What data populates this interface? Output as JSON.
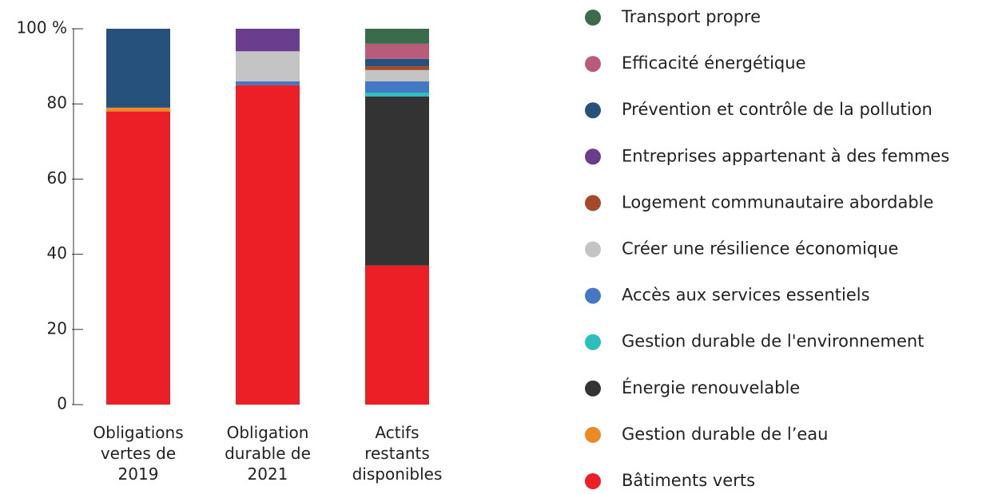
{
  "chart_data": {
    "type": "stacked_bar",
    "categories": [
      "Obligations vertes de 2019",
      "Obligation durable de 2021",
      "Actifs restants disponibles"
    ],
    "series": [
      {
        "name": "Bâtiments verts",
        "color": "#ec1f27",
        "values": [
          78,
          85,
          37
        ]
      },
      {
        "name": "Gestion durable de l’eau",
        "color": "#ee8a24",
        "values": [
          1,
          0,
          0
        ]
      },
      {
        "name": "Énergie renouvelable",
        "color": "#333333",
        "values": [
          0,
          0,
          45
        ]
      },
      {
        "name": "Gestion durable de l'environnement",
        "color": "#2bbfbd",
        "values": [
          0,
          0,
          1
        ]
      },
      {
        "name": "Accès aux services essentiels",
        "color": "#4477c4",
        "values": [
          0,
          1,
          3
        ]
      },
      {
        "name": "Créer une résilience économique",
        "color": "#c4c4c4",
        "values": [
          0,
          8,
          3
        ]
      },
      {
        "name": "Logement communautaire abordable",
        "color": "#a44a2a",
        "values": [
          0,
          0,
          1
        ]
      },
      {
        "name": "Entreprises appartenant à des femmes",
        "color": "#6a3d8f",
        "values": [
          0,
          6,
          0
        ]
      },
      {
        "name": "Prévention et contrôle de la pollution",
        "color": "#26517d",
        "values": [
          21,
          0,
          2
        ]
      },
      {
        "name": "Efficacité énergétique",
        "color": "#b85c7a",
        "values": [
          0,
          0,
          4
        ]
      },
      {
        "name": "Transport propre",
        "color": "#3a6b4a",
        "values": [
          0,
          0,
          4
        ]
      }
    ],
    "ylim": [
      0,
      100
    ],
    "yticks": [
      0,
      20,
      40,
      60,
      80,
      {
        "value": 100,
        "label": "100 %"
      }
    ],
    "legend": "right"
  }
}
